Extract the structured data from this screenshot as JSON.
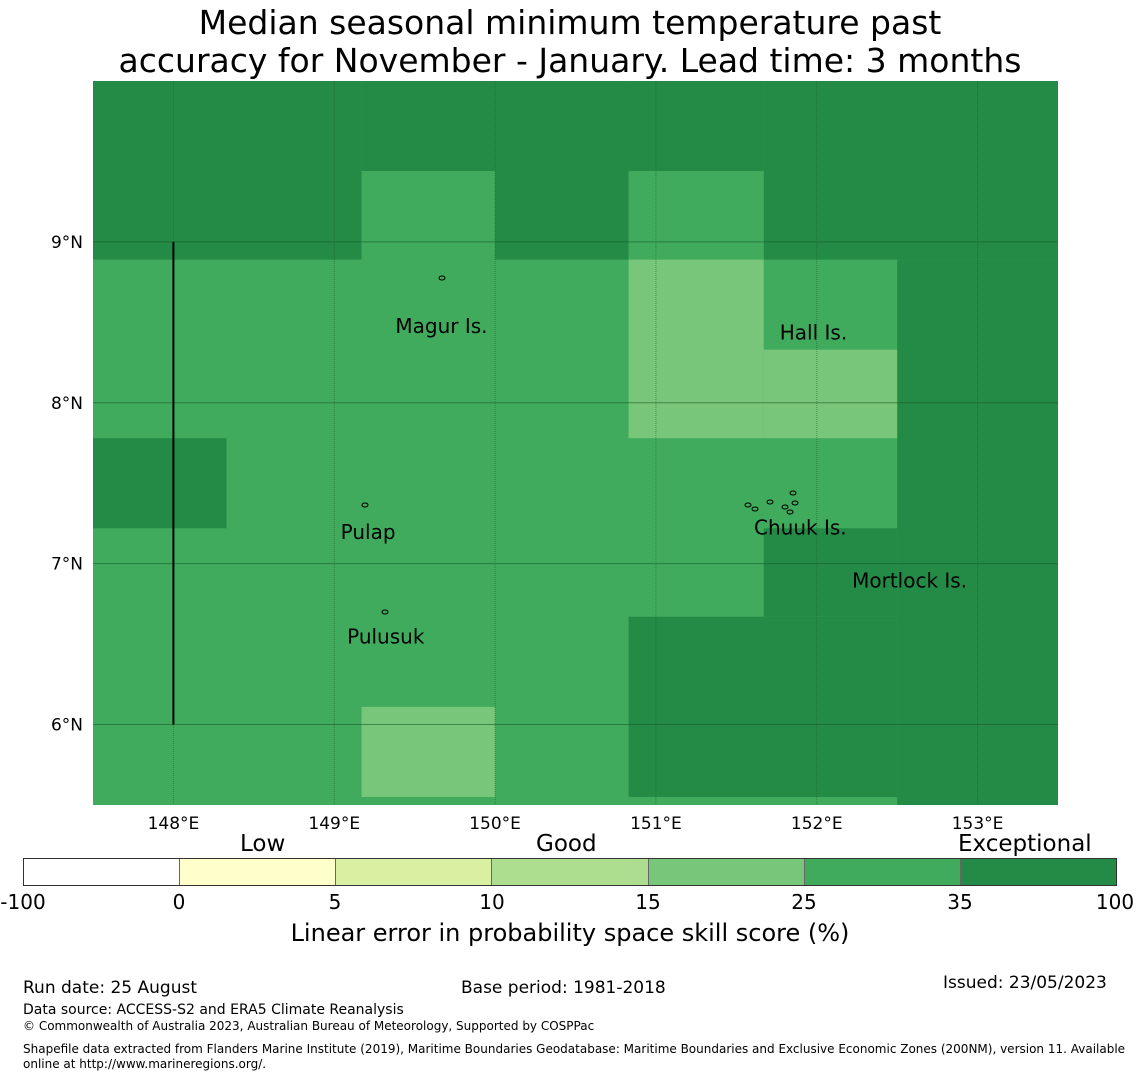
{
  "title": "Median seasonal minimum temperature past\naccuracy for November - January. Lead time: 3 months",
  "map": {
    "lon_labels": [
      "148°E",
      "149°E",
      "150°E",
      "151°E",
      "152°E",
      "153°E"
    ],
    "lat_labels": [
      "9°N",
      "8°N",
      "7°N",
      "6°N"
    ],
    "lon_values": [
      148,
      149,
      150,
      151,
      152,
      153
    ],
    "lat_values": [
      9,
      8,
      7,
      6
    ],
    "extent": {
      "lon_min": 147.5,
      "lon_max": 153.5,
      "lat_min": 5.5,
      "lat_max": 10.0
    },
    "grid_colors": {
      "35_100": "#238b45",
      "25_35": "#41ab5d",
      "15_25": "#78c679"
    },
    "cells": [
      {
        "lon": [
          147.5,
          149.17
        ],
        "lat": [
          8.89,
          10.0
        ],
        "class": "35_100"
      },
      {
        "lon": [
          149.17,
          150.0
        ],
        "lat": [
          9.44,
          10.0
        ],
        "class": "35_100"
      },
      {
        "lon": [
          150.0,
          150.83
        ],
        "lat": [
          8.89,
          10.0
        ],
        "class": "35_100"
      },
      {
        "lon": [
          150.83,
          151.67
        ],
        "lat": [
          9.44,
          10.0
        ],
        "class": "35_100"
      },
      {
        "lon": [
          151.67,
          153.5
        ],
        "lat": [
          8.89,
          10.0
        ],
        "class": "35_100"
      },
      {
        "lon": [
          152.5,
          153.5
        ],
        "lat": [
          5.5,
          8.89
        ],
        "class": "35_100"
      },
      {
        "lon": [
          147.5,
          148.33
        ],
        "lat": [
          7.22,
          7.78
        ],
        "class": "35_100"
      },
      {
        "lon": [
          151.67,
          152.5
        ],
        "lat": [
          6.67,
          7.22
        ],
        "class": "35_100"
      },
      {
        "lon": [
          150.83,
          152.5
        ],
        "lat": [
          5.55,
          6.67
        ],
        "class": "35_100"
      },
      {
        "lon": [
          149.17,
          150.0
        ],
        "lat": [
          8.89,
          9.44
        ],
        "class": "25_35"
      },
      {
        "lon": [
          150.83,
          151.67
        ],
        "lat": [
          8.89,
          9.44
        ],
        "class": "25_35"
      },
      {
        "lon": [
          150.83,
          151.67
        ],
        "lat": [
          7.78,
          8.89
        ],
        "class": "15_25"
      },
      {
        "lon": [
          151.67,
          152.5
        ],
        "lat": [
          7.78,
          8.33
        ],
        "class": "15_25"
      },
      {
        "lon": [
          149.17,
          150.0
        ],
        "lat": [
          5.55,
          6.11
        ],
        "class": "15_25"
      }
    ],
    "places": [
      {
        "name": "Magur Is.",
        "lon": 149.38,
        "lat": 8.47
      },
      {
        "name": "Hall Is.",
        "lon": 151.77,
        "lat": 8.43
      },
      {
        "name": "Pulap",
        "lon": 149.04,
        "lat": 7.19
      },
      {
        "name": "Chuuk Is.",
        "lon": 151.61,
        "lat": 7.22
      },
      {
        "name": "Mortlock Is.",
        "lon": 152.22,
        "lat": 6.89
      },
      {
        "name": "Pulusuk",
        "lon": 149.08,
        "lat": 6.54
      }
    ]
  },
  "legend": {
    "categories": [
      "Low",
      "Good",
      "Exceptional"
    ],
    "colors": [
      "#ffffff",
      "#ffffcc",
      "#d9f0a3",
      "#addd8e",
      "#78c679",
      "#41ab5d",
      "#238b45"
    ],
    "ticks": [
      "-100",
      "0",
      "5",
      "10",
      "15",
      "25",
      "35",
      "100"
    ],
    "label": "Linear error in probability space skill score (%)"
  },
  "footer": {
    "run_date": "Run date: 25 August",
    "base_period": "Base period: 1981-2018",
    "issued": "Issued: 23/05/2023",
    "data_source": "Data source: ACCESS-S2 and ERA5 Climate Reanalysis",
    "copyright": "© Commonwealth of Australia 2023, Australian Bureau of Meteorology, Supported by COSPPac",
    "shapefile": "Shapefile data extracted from Flanders Marine Institute (2019), Maritime Boundaries Geodatabase: Maritime Boundaries and Exclusive Economic Zones (200NM), version 11. Available online at http://www.marineregions.org/."
  }
}
